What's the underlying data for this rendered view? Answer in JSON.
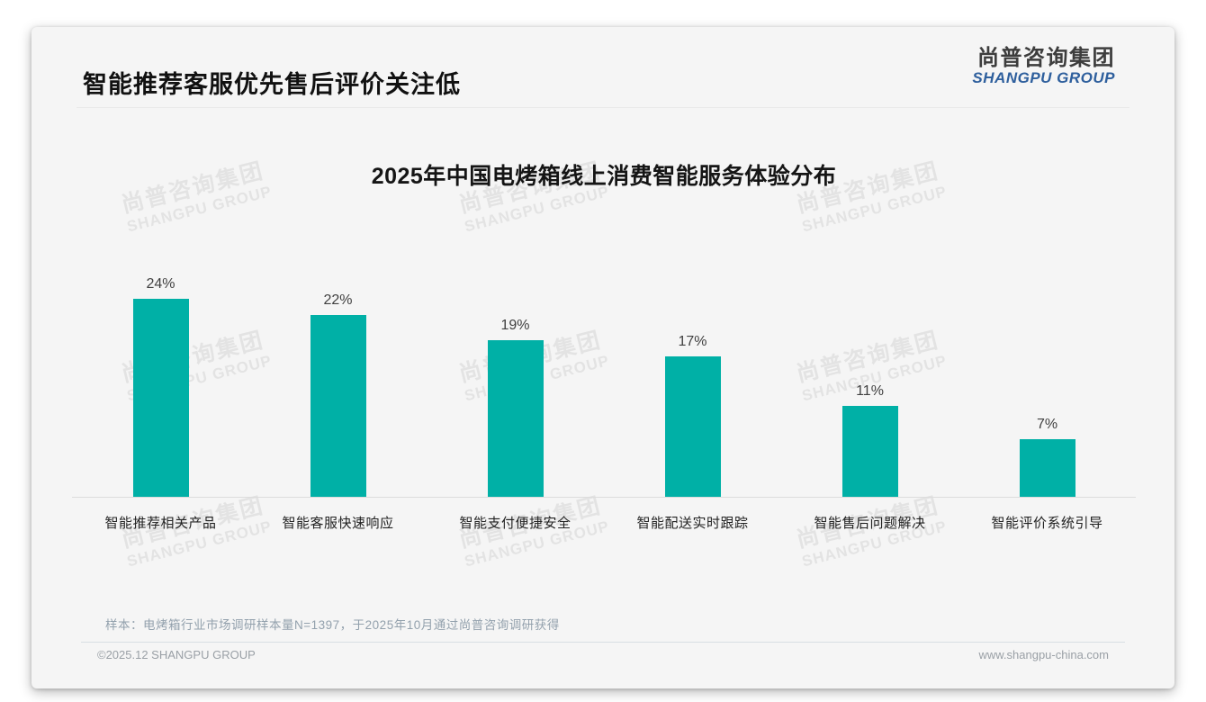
{
  "page": {
    "header": {
      "title": "智能推荐客服优先售后评价关注低"
    },
    "logo": {
      "cn": "尚普咨询集团",
      "en": "SHANGPU GROUP"
    },
    "watermark": {
      "cn": "尚普咨询集团",
      "en": "SHANGPU GROUP"
    },
    "footnote": {
      "sample_note": "样本：电烤箱行业市场调研样本量N=1397，于2025年10月通过尚普咨询调研获得"
    },
    "footer": {
      "copyright": "©2025.12 SHANGPU GROUP",
      "website": "www.shangpu-china.com"
    },
    "colors": {
      "bar_teal": "#00b0a6",
      "logo_blue": "#2e5f9d"
    }
  },
  "chart_data": {
    "type": "bar",
    "title": "2025年中国电烤箱线上消费智能服务体验分布",
    "categories": [
      "智能推荐相关产品",
      "智能客服快速响应",
      "智能支付便捷安全",
      "智能配送实时跟踪",
      "智能售后问题解决",
      "智能评价系统引导"
    ],
    "values": [
      24,
      22,
      19,
      17,
      11,
      7
    ],
    "data_labels": [
      "24%",
      "22%",
      "19%",
      "17%",
      "11%",
      "7%"
    ],
    "unit": "%",
    "bar_color": "#00b0a6",
    "xlabel": "",
    "ylabel": "",
    "ylim": [
      0,
      26
    ],
    "grid": false,
    "legend": false,
    "data_labels_position": "above-bars"
  }
}
